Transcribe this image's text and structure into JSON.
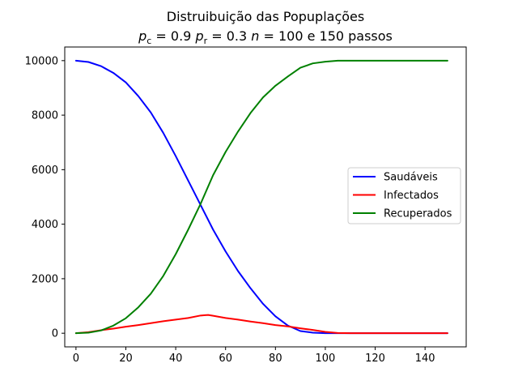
{
  "chart_data": {
    "type": "line",
    "title_line1": "Distruibuição das Popuplações",
    "title_line2": {
      "pc_symbol": "p",
      "pc_sub": "c",
      "pc_value": " = 0.9 ",
      "pr_symbol": "p",
      "pr_sub": "r",
      "pr_value": " = 0.3 ",
      "n_symbol": "n",
      "n_value": " = 100 e 150 passos"
    },
    "xlim": [
      -4.5,
      156.5
    ],
    "ylim": [
      -500,
      10500
    ],
    "xticks": [
      0,
      20,
      40,
      60,
      80,
      100,
      120,
      140
    ],
    "yticks": [
      0,
      2000,
      4000,
      6000,
      8000,
      10000
    ],
    "legend_position": "center-right",
    "grid": false,
    "series": [
      {
        "name": "Saudáveis",
        "color": "#0000ff",
        "x": [
          0,
          5,
          10,
          15,
          20,
          25,
          30,
          35,
          40,
          45,
          50,
          55,
          60,
          65,
          70,
          75,
          80,
          85,
          90,
          95,
          100,
          105,
          110,
          120,
          130,
          140,
          149
        ],
        "y": [
          10000,
          9950,
          9800,
          9550,
          9200,
          8700,
          8100,
          7350,
          6500,
          5600,
          4700,
          3800,
          3000,
          2280,
          1650,
          1080,
          620,
          280,
          80,
          20,
          0,
          0,
          0,
          0,
          0,
          0,
          0
        ]
      },
      {
        "name": "Infectados",
        "color": "#ff0000",
        "x": [
          0,
          5,
          10,
          15,
          20,
          25,
          30,
          35,
          40,
          45,
          50,
          53,
          55,
          60,
          65,
          70,
          75,
          80,
          85,
          90,
          95,
          100,
          105,
          110,
          120,
          130,
          140,
          149
        ],
        "y": [
          0,
          40,
          110,
          170,
          240,
          300,
          370,
          440,
          500,
          560,
          650,
          670,
          640,
          560,
          500,
          430,
          370,
          300,
          250,
          180,
          120,
          50,
          10,
          0,
          0,
          0,
          0,
          0
        ]
      },
      {
        "name": "Recuperados",
        "color": "#008000",
        "x": [
          0,
          5,
          10,
          15,
          20,
          25,
          30,
          35,
          40,
          45,
          50,
          55,
          60,
          65,
          70,
          75,
          80,
          85,
          90,
          95,
          100,
          105,
          110,
          120,
          130,
          140,
          149
        ],
        "y": [
          0,
          20,
          100,
          280,
          550,
          950,
          1450,
          2100,
          2900,
          3800,
          4750,
          5800,
          6650,
          7400,
          8080,
          8650,
          9080,
          9420,
          9740,
          9900,
          9960,
          10000,
          10000,
          10000,
          10000,
          10000,
          10000
        ]
      }
    ]
  }
}
